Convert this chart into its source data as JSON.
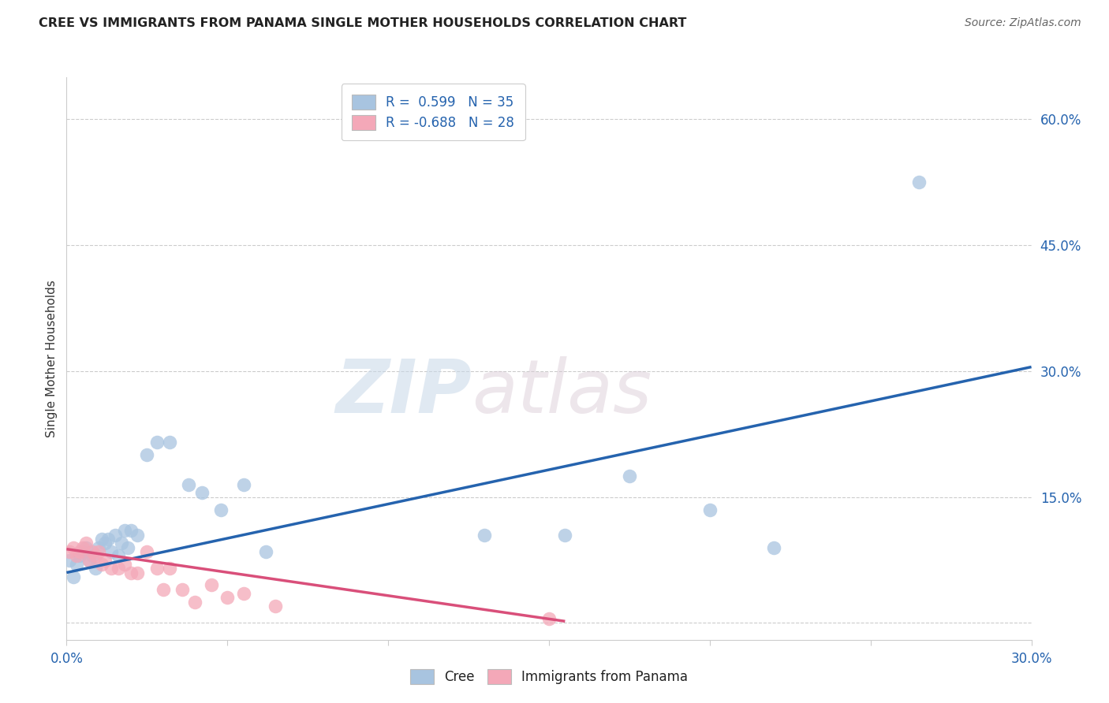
{
  "title": "CREE VS IMMIGRANTS FROM PANAMA SINGLE MOTHER HOUSEHOLDS CORRELATION CHART",
  "source": "Source: ZipAtlas.com",
  "ylabel": "Single Mother Households",
  "xlim": [
    0.0,
    0.3
  ],
  "ylim": [
    -0.02,
    0.65
  ],
  "xticks": [
    0.0,
    0.05,
    0.1,
    0.15,
    0.2,
    0.25,
    0.3
  ],
  "yticks": [
    0.0,
    0.15,
    0.3,
    0.45,
    0.6
  ],
  "legend_label1": "R =  0.599   N = 35",
  "legend_label2": "R = -0.688   N = 28",
  "legend_bottom_label1": "Cree",
  "legend_bottom_label2": "Immigrants from Panama",
  "cree_color": "#a8c4e0",
  "panama_color": "#f4a8b8",
  "cree_line_color": "#2563ae",
  "panama_line_color": "#d94f7a",
  "watermark_zip": "ZIP",
  "watermark_atlas": "atlas",
  "cree_x": [
    0.001,
    0.002,
    0.003,
    0.004,
    0.005,
    0.006,
    0.007,
    0.008,
    0.009,
    0.01,
    0.011,
    0.012,
    0.013,
    0.014,
    0.015,
    0.016,
    0.017,
    0.018,
    0.019,
    0.02,
    0.022,
    0.025,
    0.028,
    0.032,
    0.038,
    0.042,
    0.048,
    0.055,
    0.062,
    0.13,
    0.155,
    0.175,
    0.2,
    0.22,
    0.265
  ],
  "cree_y": [
    0.075,
    0.055,
    0.07,
    0.08,
    0.085,
    0.09,
    0.075,
    0.08,
    0.065,
    0.09,
    0.1,
    0.095,
    0.1,
    0.085,
    0.105,
    0.08,
    0.095,
    0.11,
    0.09,
    0.11,
    0.105,
    0.2,
    0.215,
    0.215,
    0.165,
    0.155,
    0.135,
    0.165,
    0.085,
    0.105,
    0.105,
    0.175,
    0.135,
    0.09,
    0.525
  ],
  "panama_x": [
    0.001,
    0.002,
    0.003,
    0.004,
    0.005,
    0.006,
    0.007,
    0.008,
    0.009,
    0.01,
    0.011,
    0.012,
    0.014,
    0.016,
    0.018,
    0.02,
    0.022,
    0.025,
    0.028,
    0.03,
    0.032,
    0.036,
    0.04,
    0.045,
    0.05,
    0.055,
    0.065,
    0.15
  ],
  "panama_y": [
    0.085,
    0.09,
    0.08,
    0.085,
    0.09,
    0.095,
    0.075,
    0.085,
    0.08,
    0.085,
    0.07,
    0.075,
    0.065,
    0.065,
    0.07,
    0.06,
    0.06,
    0.085,
    0.065,
    0.04,
    0.065,
    0.04,
    0.025,
    0.045,
    0.03,
    0.035,
    0.02,
    0.005
  ],
  "cree_trend_x": [
    0.0,
    0.3
  ],
  "cree_trend_y": [
    0.06,
    0.305
  ],
  "panama_trend_x": [
    0.0,
    0.155
  ],
  "panama_trend_y": [
    0.088,
    0.002
  ]
}
